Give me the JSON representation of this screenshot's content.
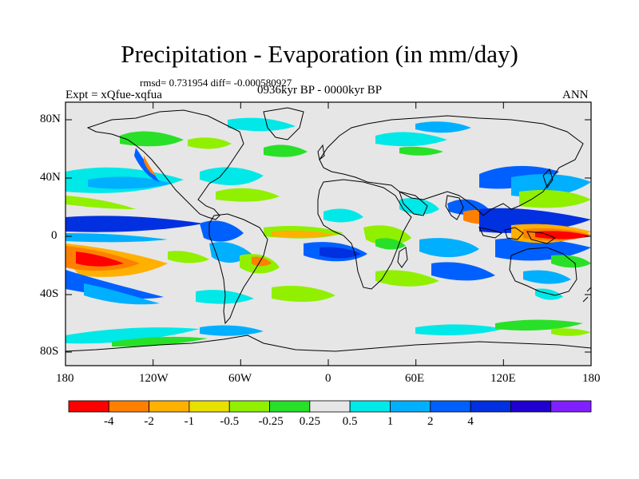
{
  "title": "Precipitation - Evaporation (in mm/day)",
  "stats": "rmsd= 0.731954 diff= -0.000580927",
  "experiment": "Expt = xQfue-xqfua",
  "period": "0936kyr BP - 0000kyr BP",
  "season": "ANN",
  "lat_ticks": [
    "80N",
    "40N",
    "0",
    "40S",
    "80S"
  ],
  "lon_ticks": [
    "180",
    "120W",
    "60W",
    "0",
    "60E",
    "120E",
    "180"
  ],
  "colorbar": {
    "labels": [
      "-4",
      "-2",
      "-1",
      "-0.5",
      "-0.25",
      "0.25",
      "0.5",
      "1",
      "2",
      "4"
    ],
    "colors": [
      "#ff0000",
      "#ff8000",
      "#ffb000",
      "#e8e000",
      "#90f000",
      "#28e028",
      "#e6e6e6",
      "#00e8e8",
      "#00b0ff",
      "#0060ff",
      "#0030e0",
      "#2000d0",
      "#8020ff"
    ]
  },
  "colors": {
    "background": "#e6e6e6",
    "coastline": "#000000"
  }
}
